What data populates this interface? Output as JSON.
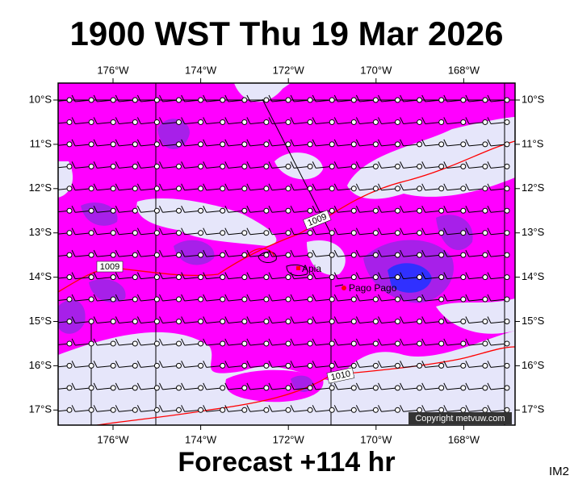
{
  "title": "1900 WST Thu 19 Mar 2026",
  "map": {
    "lon_labels": [
      "176°W",
      "174°W",
      "172°W",
      "170°W",
      "168°W"
    ],
    "lat_labels": [
      "10°S",
      "11°S",
      "12°S",
      "13°S",
      "14°S",
      "15°S",
      "16°S",
      "17°S"
    ],
    "places": [
      "Apia",
      "Pago Pago"
    ],
    "isobar_labels": [
      "1009",
      "1009",
      "1010"
    ],
    "copyright": "Copyright metvuw.com"
  },
  "footer": "Forecast +114 hr",
  "corner": "IM2"
}
